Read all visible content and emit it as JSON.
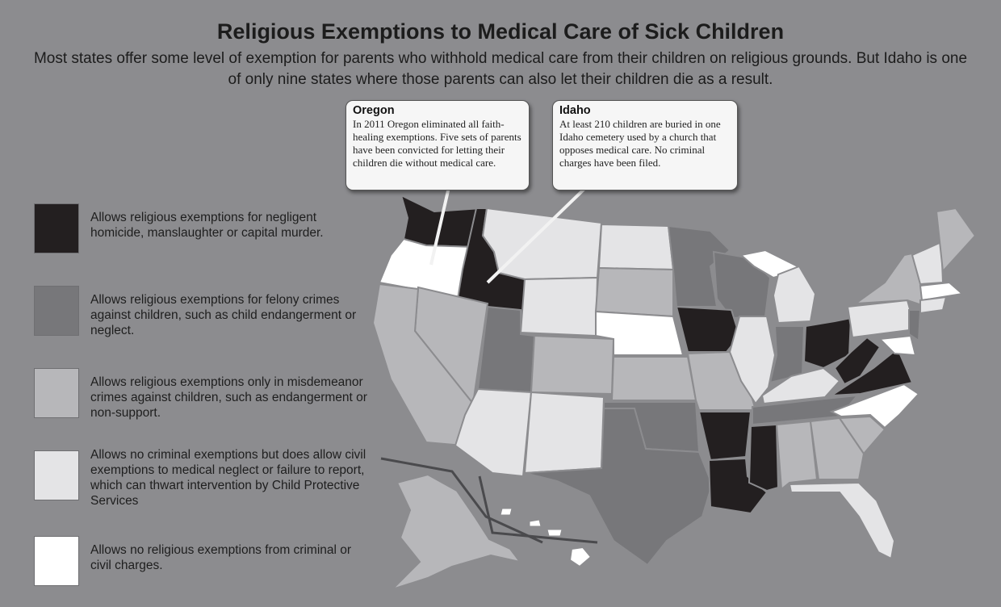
{
  "title": "Religious Exemptions to Medical Care of Sick Children",
  "subtitle": "Most states offer some level of exemption for parents who withhold medical care from their children on religious grounds.  But Idaho is one of only nine states where those parents can also let their children die as a result.",
  "callouts": [
    {
      "title": "Oregon",
      "body": "In 2011 Oregon eliminated all faith-healing exemptions.  Five sets of parents have been convicted for letting their children die without medical care."
    },
    {
      "title": "Idaho",
      "body": "At least 210 children are buried in one Idaho cemetery used by a church that opposes medical care. No criminal charges have been filed."
    }
  ],
  "legend": [
    {
      "color": "#231f20",
      "label": "Allows religious exemptions for negligent homicide, manslaughter or capital murder."
    },
    {
      "color": "#77777a",
      "label": "Allows religious exemptions for felony crimes against children, such as child endangerment or neglect."
    },
    {
      "color": "#b7b7ba",
      "label": "Allows religious exemptions only in misdemeanor crimes against children, such as endangerment or non-support."
    },
    {
      "color": "#e4e4e6",
      "label": "Allows no criminal exemptions but does allow civil exemptions to medical neglect or failure to report, which can thwart intervention by Child Protective Services"
    },
    {
      "color": "#ffffff",
      "label": "Allows no religious exemptions from criminal or civil charges."
    }
  ]
}
